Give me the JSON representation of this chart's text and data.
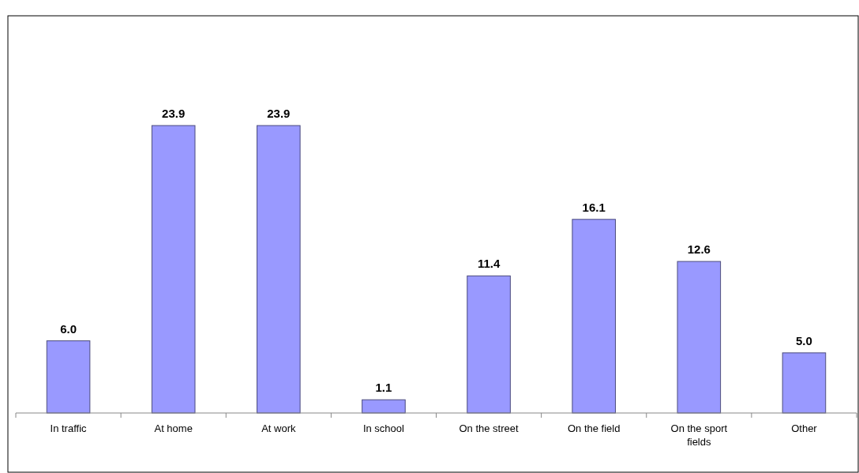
{
  "chart_data": {
    "type": "bar",
    "categories": [
      "In traffic",
      "At home",
      "At work",
      "In school",
      "On the street",
      "On the field",
      "On the sport fields",
      "Other"
    ],
    "values": [
      6.0,
      23.9,
      23.9,
      1.1,
      11.4,
      16.1,
      12.6,
      5.0
    ],
    "value_labels": [
      "6.0",
      "23.9",
      "23.9",
      "1.1",
      "11.4",
      "16.1",
      "12.6",
      "5.0"
    ],
    "color": "#9999ff"
  }
}
